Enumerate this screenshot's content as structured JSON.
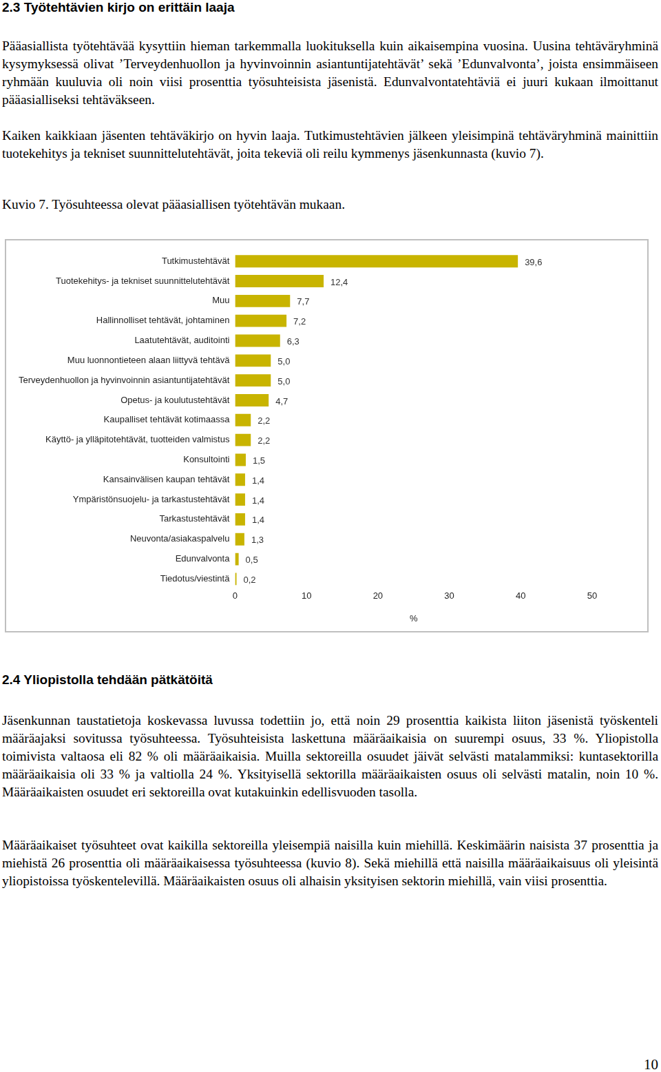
{
  "page": {
    "heading_1": "2.3 Työtehtävien kirjo on erittäin laaja",
    "paragraphs_1": [
      "Pääasiallista työtehtävää kysyttiin hieman tarkemmalla luokituksella kuin aikaisempina vuosina. Uusina tehtäväryhminä kysymyksessä olivat ’Terveydenhuollon ja hyvinvoinnin asiantuntijatehtävät’ sekä ’Edunvalvonta’, joista ensimmäiseen ryhmään kuuluvia oli noin viisi prosenttia työsuhteisista jäsenistä. Edunvalvontatehtäviä ei juuri kukaan ilmoittanut pääasialliseksi tehtäväkseen.",
      "Kaiken kaikkiaan jäsenten tehtäväkirjo on hyvin laaja. Tutkimustehtävien jälkeen yleisimpinä tehtäväryhminä mainittiin tuotekehitys ja tekniset suunnittelutehtävät, joita tekeviä oli reilu kymmenys jäsenkunnasta (kuvio 7)."
    ],
    "caption": "Kuvio 7. Työsuhteessa olevat pääasiallisen työtehtävän mukaan.",
    "heading_2": "2.4 Yliopistolla tehdään pätkätöitä",
    "paragraphs_2": [
      "Jäsenkunnan taustatietoja koskevassa luvussa todettiin jo, että noin 29 prosenttia kaikista liiton jäsenistä työskenteli määräajaksi sovitussa työsuhteessa. Työsuhteisista laskettuna määräaikaisia on suurempi osuus, 33 %. Yliopistolla toimivista valtaosa eli 82 % oli määräaikaisia. Muilla sektoreilla osuudet jäivät selvästi matalammiksi: kuntasektorilla määräaikaisia oli 33 % ja valtiolla 24 %. Yksityisellä sektorilla määräaikaisten osuus oli selvästi matalin, noin 10 %. Määräaikaisten osuudet eri sektoreilla ovat kutakuinkin edellisvuoden tasolla.",
      "Määräaikaiset työsuhteet ovat kaikilla sektoreilla yleisempiä naisilla kuin miehillä. Keskimäärin naisista 37 prosenttia ja miehistä 26 prosenttia oli määräaikaisessa työsuhteessa (kuvio 8). Sekä miehillä että naisilla määräaikaisuus oli yleisintä yliopistoissa työskentelevillä. Määräaikaisten osuus oli alhaisin yksityisen sektorin miehillä, vain viisi prosenttia."
    ],
    "page_number": "10"
  },
  "chart_data": {
    "type": "bar",
    "orientation": "horizontal",
    "x_label": "%",
    "categories": [
      "Tutkimustehtävät",
      "Tuotekehitys- ja tekniset suunnittelutehtävät",
      "Muu",
      "Hallinnolliset tehtävät, johtaminen",
      "Laatutehtävät, auditointi",
      "Muu luonnontieteen alaan liittyvä tehtävä",
      "Terveydenhuollon ja hyvinvoinnin asiantuntijatehtävät",
      "Opetus- ja koulutustehtävät",
      "Kaupalliset tehtävät kotimaassa",
      "Käyttö- ja ylläpitotehtävät, tuotteiden valmistus",
      "Konsultointi",
      "Kansainvälisen kaupan tehtävät",
      "Ympäristönsuojelu- ja tarkastustehtävät",
      "Tarkastustehtävät",
      "Neuvonta/asiakaspalvelu",
      "Edunvalvonta",
      "Tiedotus/viestintä"
    ],
    "values": [
      39.6,
      12.4,
      7.7,
      7.2,
      6.3,
      5.0,
      5.0,
      4.7,
      2.2,
      2.2,
      1.5,
      1.4,
      1.4,
      1.4,
      1.3,
      0.5,
      0.2
    ],
    "value_labels": [
      "39,6",
      "12,4",
      "7,7",
      "7,2",
      "6,3",
      "5,0",
      "5,0",
      "4,7",
      "2,2",
      "2,2",
      "1,5",
      "1,4",
      "1,4",
      "1,4",
      "1,3",
      "0,5",
      "0,2"
    ],
    "data_labels": true,
    "color": "#c8b400",
    "xlim": [
      0,
      50
    ],
    "xticks": [
      0,
      10,
      20,
      30,
      40,
      50
    ],
    "grid": false
  }
}
